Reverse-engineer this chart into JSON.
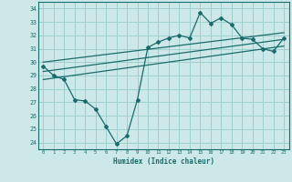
{
  "xlabel": "Humidex (Indice chaleur)",
  "bg_color": "#cce8e8",
  "grid_color": "#9ecece",
  "line_color": "#1a6b6b",
  "xlim": [
    -0.5,
    23.5
  ],
  "ylim": [
    23.5,
    34.5
  ],
  "yticks": [
    24,
    25,
    26,
    27,
    28,
    29,
    30,
    31,
    32,
    33,
    34
  ],
  "xticks": [
    0,
    1,
    2,
    3,
    4,
    5,
    6,
    7,
    8,
    9,
    10,
    11,
    12,
    13,
    14,
    15,
    16,
    17,
    18,
    19,
    20,
    21,
    22,
    23
  ],
  "line1_x": [
    0,
    1,
    2,
    3,
    4,
    5,
    6,
    7,
    8,
    9,
    10,
    11,
    12,
    13,
    14,
    15,
    16,
    17,
    18,
    19,
    20,
    21,
    22,
    23
  ],
  "line1_y": [
    29.7,
    29.0,
    28.7,
    27.2,
    27.1,
    26.5,
    25.2,
    23.9,
    24.5,
    27.2,
    31.1,
    31.5,
    31.8,
    32.0,
    31.8,
    33.7,
    32.9,
    33.3,
    32.8,
    31.8,
    31.7,
    31.0,
    30.8,
    31.8
  ],
  "line2_x": [
    0,
    23
  ],
  "line2_y": [
    29.3,
    31.7
  ],
  "line3_x": [
    0,
    23
  ],
  "line3_y": [
    30.0,
    32.2
  ],
  "line4_x": [
    0,
    23
  ],
  "line4_y": [
    28.7,
    31.2
  ]
}
